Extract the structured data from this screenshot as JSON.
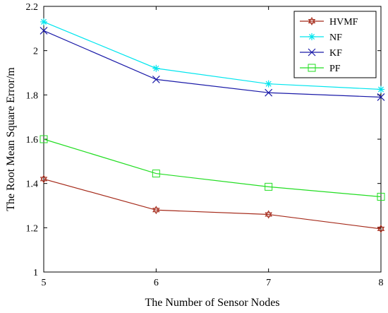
{
  "chart_data": {
    "type": "line",
    "xlabel": "The Number of Sensor Nodes",
    "ylabel": "The Root Mean Square Error/m",
    "x": [
      5,
      6,
      7,
      8
    ],
    "x_ticks": [
      "5",
      "6",
      "7",
      "8"
    ],
    "xlim": [
      5,
      8
    ],
    "y_ticks": [
      "1",
      "1.2",
      "1.4",
      "1.6",
      "1.8",
      "2",
      "2.2"
    ],
    "ylim": [
      1,
      2.2
    ],
    "grid": false,
    "legend_position": "top-right",
    "series": [
      {
        "name": "HVMF",
        "values": [
          1.42,
          1.28,
          1.26,
          1.195
        ],
        "color": "#a52a1a",
        "marker": "hexagram"
      },
      {
        "name": "NF",
        "values": [
          2.13,
          1.92,
          1.85,
          1.825
        ],
        "color": "#00e5ee",
        "marker": "asterisk"
      },
      {
        "name": "KF",
        "values": [
          2.09,
          1.87,
          1.81,
          1.79
        ],
        "color": "#1a1aa8",
        "marker": "x"
      },
      {
        "name": "PF",
        "values": [
          1.6,
          1.445,
          1.385,
          1.34
        ],
        "color": "#22dd22",
        "marker": "square"
      }
    ]
  }
}
